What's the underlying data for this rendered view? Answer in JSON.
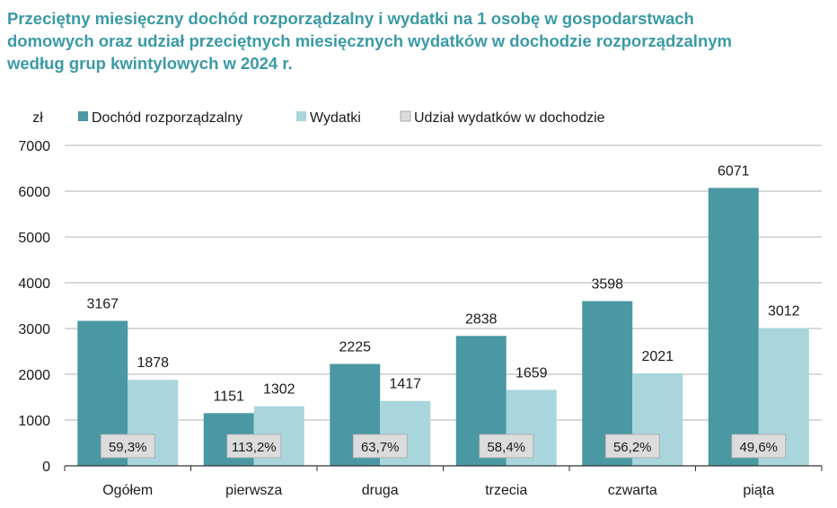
{
  "title_lines": [
    "Przeciętny miesięczny dochód rozporządzalny i wydatki na 1 osobę w gospodarstwach",
    "domowych oraz udział przeciętnych miesięcznych wydatków w dochodzie rozporządzalnym",
    "według grup kwintylowych w 2024 r."
  ],
  "colors": {
    "title": "#3a9aa6",
    "income": "#4a98a3",
    "expenses": "#a8d6dc",
    "share_box": "#dcdcdc",
    "grid": "#999999"
  },
  "chart_data": {
    "type": "bar",
    "ylabel": "zł",
    "ylim": [
      0,
      7000
    ],
    "yticks": [
      0,
      1000,
      2000,
      3000,
      4000,
      5000,
      6000,
      7000
    ],
    "grid": true,
    "legend_placement": "top-left",
    "categories": [
      "Ogółem",
      "pierwsza",
      "druga",
      "trzecia",
      "czwarta",
      "piąta"
    ],
    "series": [
      {
        "name": "Dochód rozporządzalny",
        "values": [
          3167,
          1151,
          2225,
          2838,
          3598,
          6071
        ]
      },
      {
        "name": "Wydatki",
        "values": [
          1878,
          1302,
          1417,
          1659,
          2021,
          3012
        ]
      }
    ],
    "share_series": {
      "name": "Udział wydatków w dochodzie",
      "labels": [
        "59,3%",
        "113,2%",
        "63,7%",
        "58,4%",
        "56,2%",
        "49,6%"
      ]
    }
  }
}
